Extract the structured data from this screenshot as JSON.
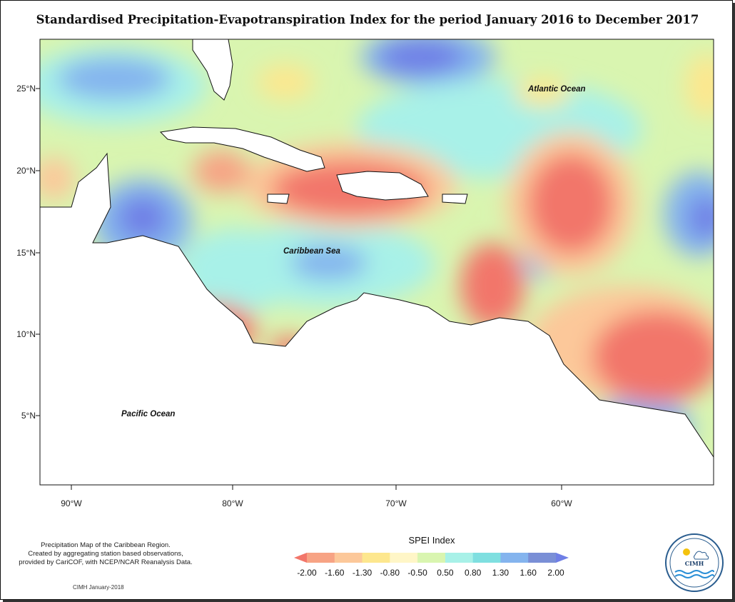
{
  "title": "Standardised Precipitation-Evapotranspiration Index for the period January 2016 to December 2017",
  "map": {
    "lat_ticks": [
      "25°N",
      "20°N",
      "15°N",
      "10°N",
      "5°N"
    ],
    "lon_ticks": [
      "90°W",
      "80°W",
      "70°W",
      "60°W"
    ],
    "labels": {
      "atlantic": "Atlantic Ocean",
      "caribbean": "Caribbean Sea",
      "pacific": "Pacific Ocean"
    },
    "background_color": "#d9f5b0"
  },
  "legend": {
    "title": "SPEI Index",
    "ticks": [
      "-2.00",
      "-1.60",
      "-1.30",
      "-0.80",
      "-0.50",
      "0.50",
      "0.80",
      "1.30",
      "1.60",
      "2.00"
    ],
    "colors": [
      "#f2766a",
      "#f7a384",
      "#fcc89a",
      "#fde78e",
      "#fff6c7",
      "#d9f5b0",
      "#a8f1e8",
      "#7fdfe0",
      "#84b4ee",
      "#7a8fd6",
      "#6f7fe6"
    ]
  },
  "note": {
    "lines": [
      "Precipitation Map of the Caribbean Region.",
      "Created by aggregating station based observations,",
      "provided by CariCOF, with NCEP/NCAR Reanalysis Data."
    ],
    "credit": "CIMH January-2018"
  },
  "logo": {
    "text": "CIMH"
  }
}
